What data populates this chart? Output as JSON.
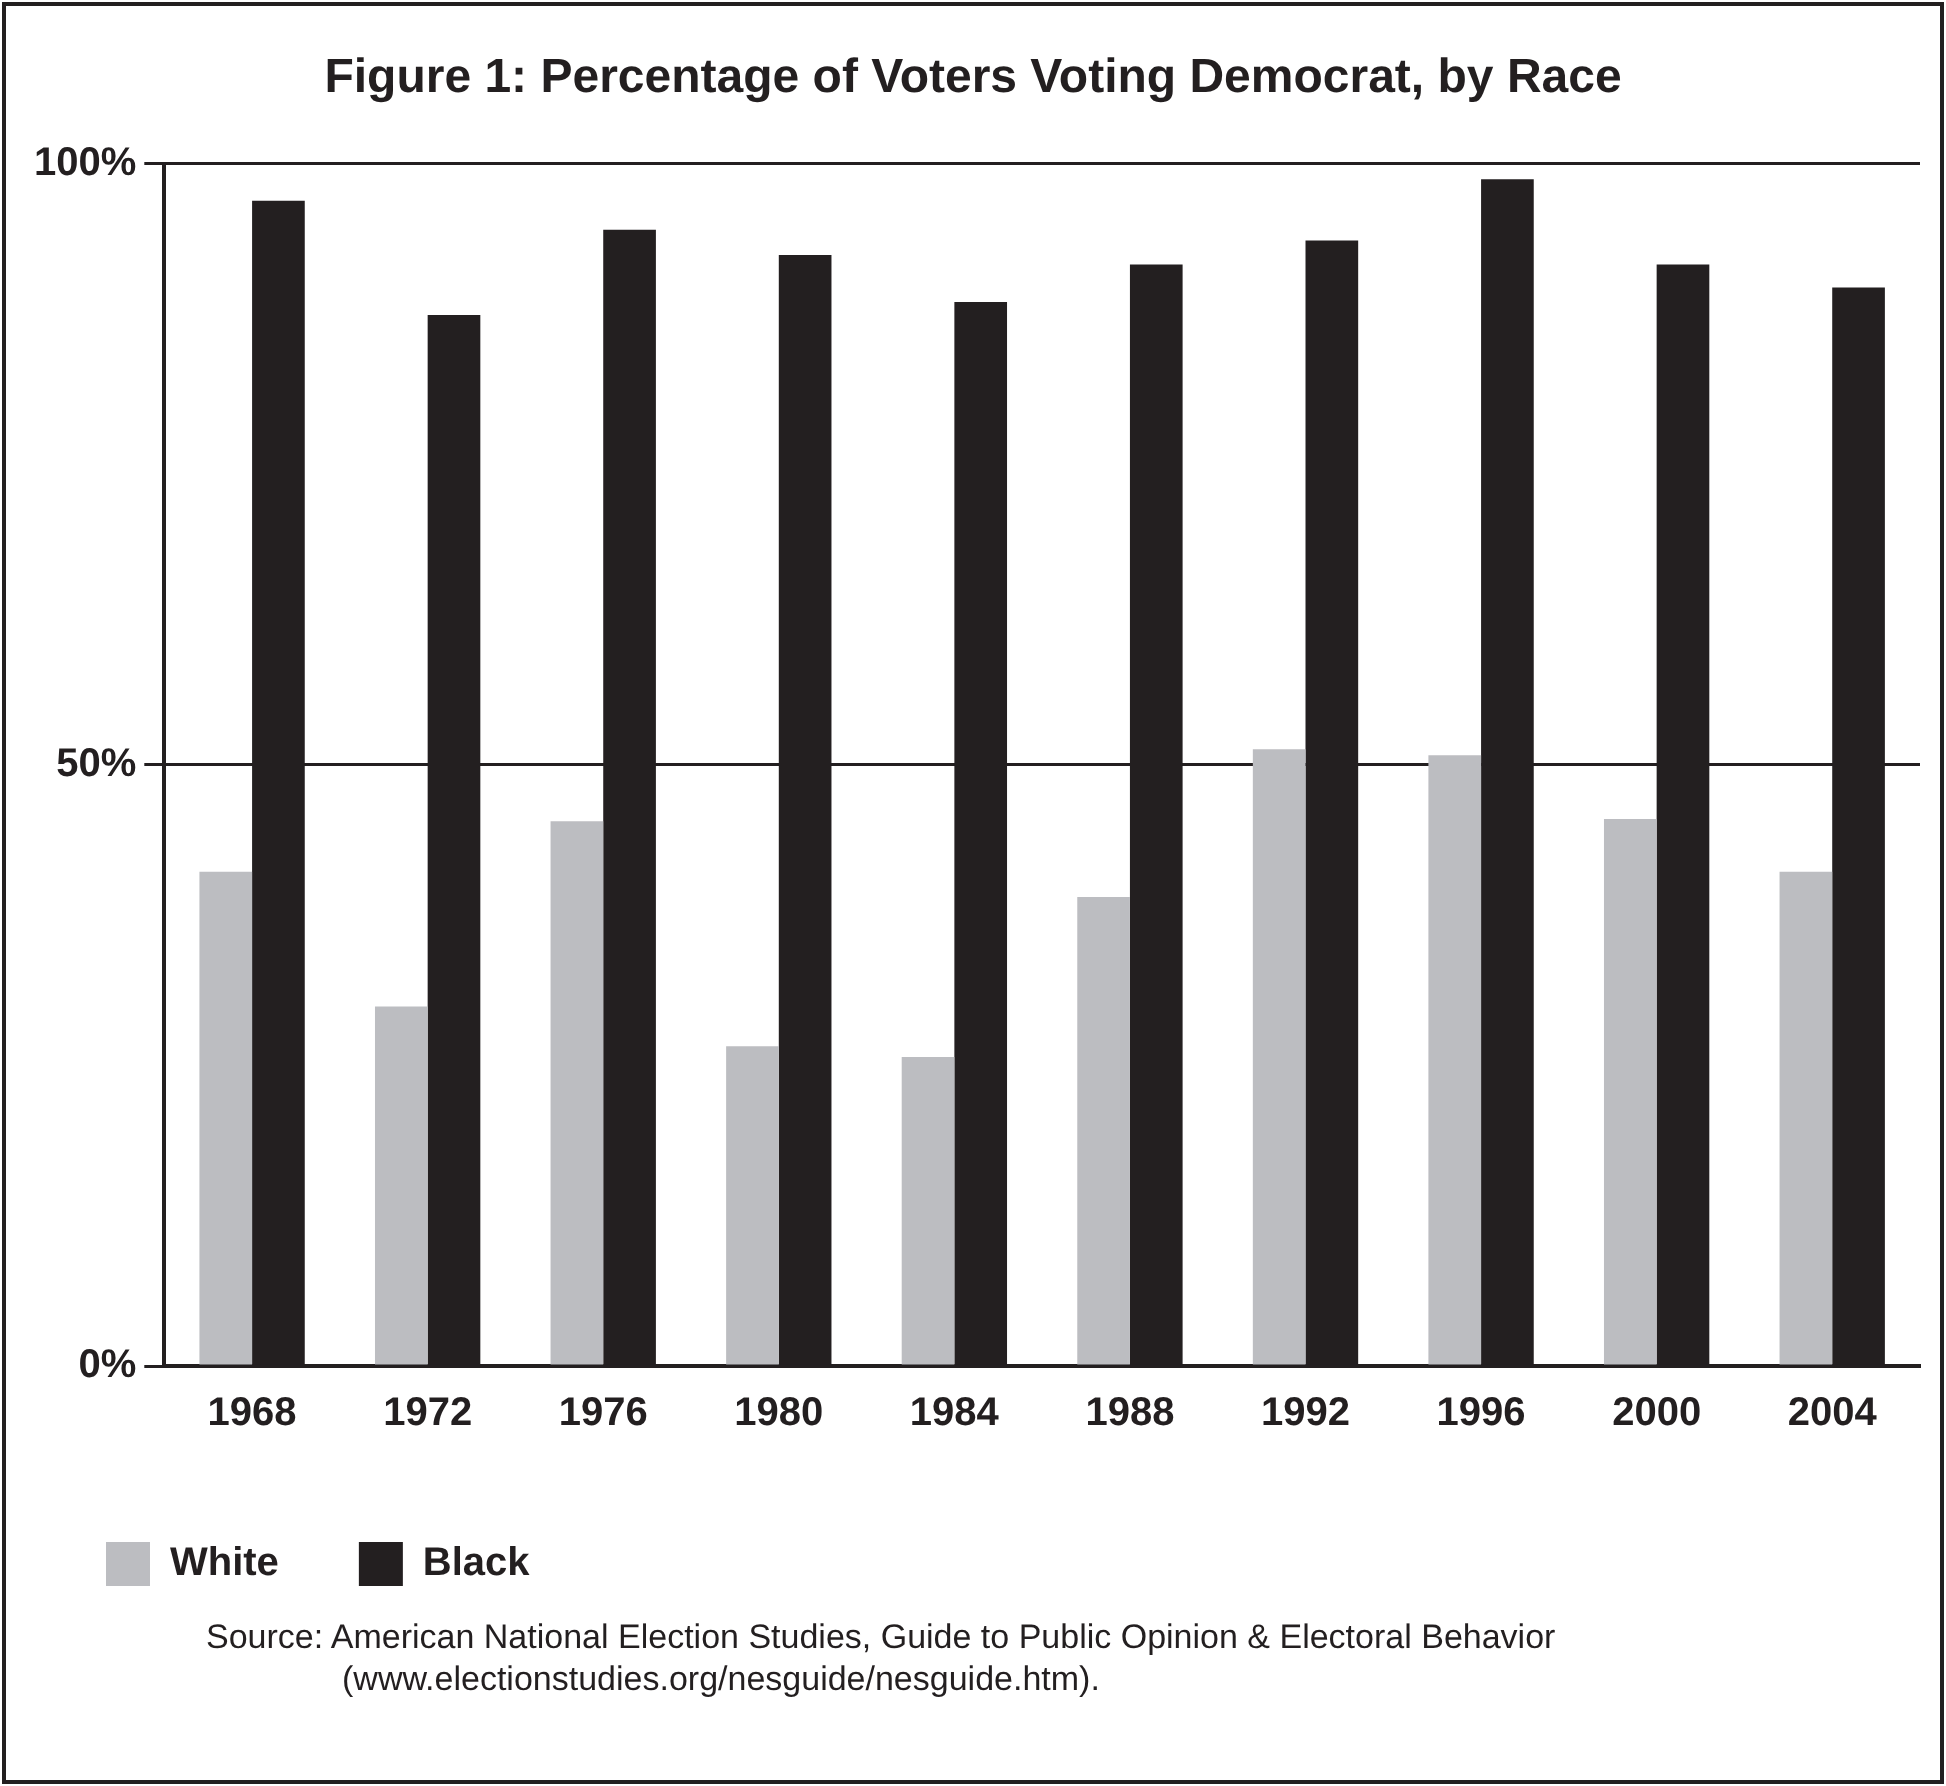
{
  "chart_data": {
    "type": "bar",
    "title": "Figure 1: Percentage of Voters Voting Democrat, by Race",
    "categories": [
      "1968",
      "1972",
      "1976",
      "1980",
      "1984",
      "1988",
      "1992",
      "1996",
      "2000",
      "2004"
    ],
    "series": [
      {
        "name": "White",
        "color": "#bcbdc1",
        "values": [
          41.1,
          29.9,
          45.3,
          26.6,
          25.7,
          39.0,
          51.3,
          50.8,
          45.5,
          41.1
        ]
      },
      {
        "name": "Black",
        "color": "#231f20",
        "values": [
          96.9,
          87.4,
          94.5,
          92.4,
          88.5,
          91.6,
          93.6,
          98.7,
          91.6,
          89.7
        ]
      }
    ],
    "ylim": [
      0,
      100
    ],
    "yticks": [
      {
        "value": 0,
        "label": "0%"
      },
      {
        "value": 50,
        "label": "50%"
      },
      {
        "value": 100,
        "label": "100%"
      }
    ],
    "grid": "y",
    "legend": "bottom left",
    "annotations": [
      "Source:   American National Election Studies, Guide to Public Opinion & Electoral Behavior (www.electionstudies.org/nesguide/nesguide.htm)."
    ]
  }
}
